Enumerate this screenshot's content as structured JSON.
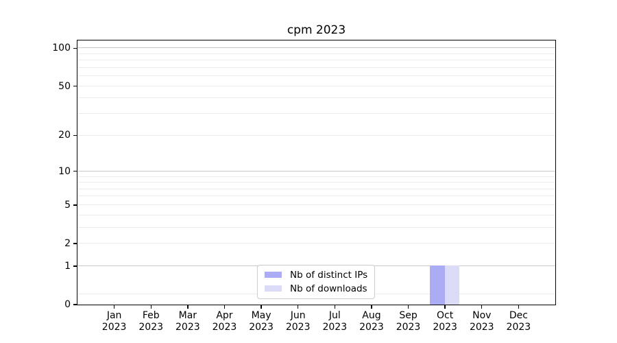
{
  "figure": {
    "background": "#ffffff"
  },
  "chart_data": {
    "type": "bar",
    "title": "cpm 2023",
    "categories": [
      "Jan 2023",
      "Feb 2023",
      "Mar 2023",
      "Apr 2023",
      "May 2023",
      "Jun 2023",
      "Jul 2023",
      "Aug 2023",
      "Sep 2023",
      "Oct 2023",
      "Nov 2023",
      "Dec 2023"
    ],
    "series": [
      {
        "name": "Nb of distinct IPs",
        "color": "#acacf4",
        "values": [
          0,
          0,
          0,
          0,
          0,
          0,
          0,
          0,
          0,
          1,
          0,
          0
        ]
      },
      {
        "name": "Nb of downloads",
        "color": "#dbdbf8",
        "values": [
          0,
          0,
          0,
          0,
          0,
          0,
          0,
          0,
          0,
          1,
          0,
          0
        ]
      }
    ],
    "xlabel": "",
    "ylabel": "",
    "y_scale": "log10(1+y)",
    "y_ticks": [
      0,
      1,
      2,
      5,
      10,
      20,
      50,
      100
    ],
    "y_minor_ticks": [
      0.2,
      3,
      4,
      6,
      7,
      8,
      9,
      30,
      40,
      60,
      70,
      80,
      90
    ],
    "ylim": [
      0,
      115
    ],
    "grid": "horizontal",
    "legend_position": "lower center"
  },
  "styles": {
    "axis_color": "#000000",
    "text_color": "#000000",
    "grid_minor_color": "#ececec",
    "grid_major_color": "#c8c8c8",
    "legend_border_color": "#cccccc",
    "legend_background": "#ffffff"
  }
}
